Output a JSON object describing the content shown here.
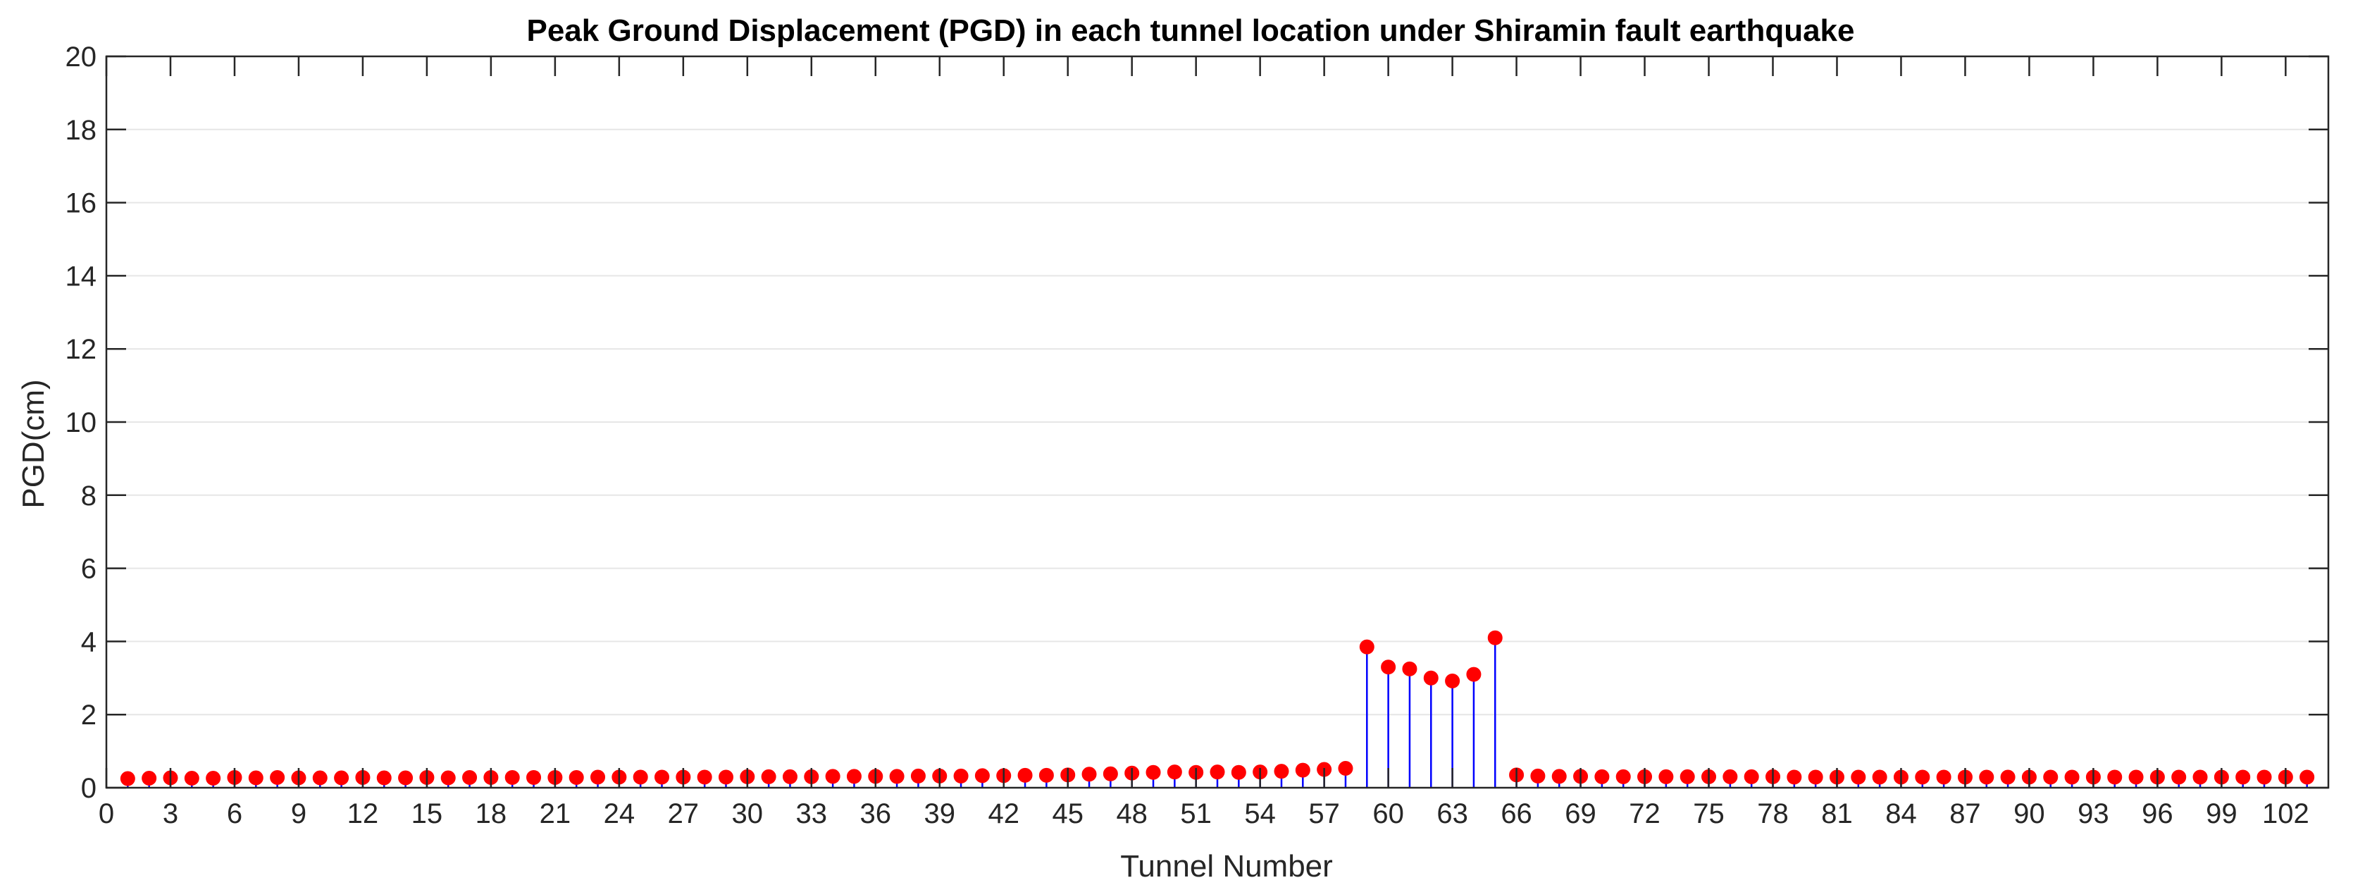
{
  "chart_data": {
    "type": "stem",
    "title": "Peak Ground Displacement (PGD) in each tunnel location under Shiramin fault earthquake",
    "xlabel": "Tunnel Number",
    "ylabel": "PGD(cm)",
    "xlim": [
      0,
      104
    ],
    "ylim": [
      0,
      20
    ],
    "xticks": [
      0,
      3,
      6,
      9,
      12,
      15,
      18,
      21,
      24,
      27,
      30,
      33,
      36,
      39,
      42,
      45,
      48,
      51,
      54,
      57,
      60,
      63,
      66,
      69,
      72,
      75,
      78,
      81,
      84,
      87,
      90,
      93,
      96,
      99,
      102
    ],
    "yticks": [
      0,
      2,
      4,
      6,
      8,
      10,
      12,
      14,
      16,
      18,
      20
    ],
    "grid": true,
    "legend": "none",
    "stem_color": "#0000ff",
    "marker_color": "#ff0000",
    "x": [
      1,
      2,
      3,
      4,
      5,
      6,
      7,
      8,
      9,
      10,
      11,
      12,
      13,
      14,
      15,
      16,
      17,
      18,
      19,
      20,
      21,
      22,
      23,
      24,
      25,
      26,
      27,
      28,
      29,
      30,
      31,
      32,
      33,
      34,
      35,
      36,
      37,
      38,
      39,
      40,
      41,
      42,
      43,
      44,
      45,
      46,
      47,
      48,
      49,
      50,
      51,
      52,
      53,
      54,
      55,
      56,
      57,
      58,
      59,
      60,
      61,
      62,
      63,
      64,
      65,
      66,
      67,
      68,
      69,
      70,
      71,
      72,
      73,
      74,
      75,
      76,
      77,
      78,
      79,
      80,
      81,
      82,
      83,
      84,
      85,
      86,
      87,
      88,
      89,
      90,
      91,
      92,
      93,
      94,
      95,
      96,
      97,
      98,
      99,
      100,
      101,
      102,
      103
    ],
    "values": [
      0.25,
      0.26,
      0.27,
      0.26,
      0.26,
      0.28,
      0.27,
      0.28,
      0.27,
      0.27,
      0.27,
      0.28,
      0.27,
      0.27,
      0.28,
      0.27,
      0.28,
      0.28,
      0.28,
      0.28,
      0.28,
      0.28,
      0.29,
      0.29,
      0.29,
      0.29,
      0.29,
      0.29,
      0.29,
      0.3,
      0.3,
      0.3,
      0.3,
      0.31,
      0.31,
      0.31,
      0.31,
      0.32,
      0.32,
      0.32,
      0.33,
      0.33,
      0.34,
      0.34,
      0.35,
      0.37,
      0.38,
      0.4,
      0.42,
      0.43,
      0.42,
      0.43,
      0.42,
      0.43,
      0.45,
      0.48,
      0.5,
      0.53,
      3.85,
      3.3,
      3.25,
      3.0,
      2.92,
      3.1,
      4.1,
      0.35,
      0.32,
      0.31,
      0.31,
      0.3,
      0.3,
      0.3,
      0.3,
      0.3,
      0.3,
      0.3,
      0.3,
      0.3,
      0.29,
      0.29,
      0.29,
      0.29,
      0.29,
      0.29,
      0.29,
      0.29,
      0.29,
      0.29,
      0.29,
      0.29,
      0.29,
      0.29,
      0.29,
      0.29,
      0.29,
      0.29,
      0.29,
      0.29,
      0.29,
      0.29,
      0.29,
      0.29,
      0.29
    ]
  }
}
